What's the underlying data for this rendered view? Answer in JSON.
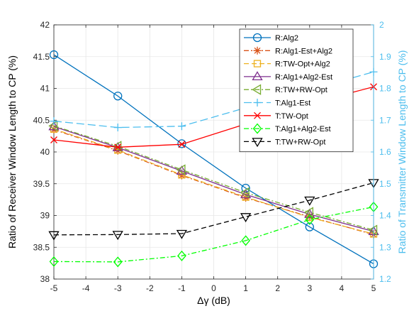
{
  "chart_data": {
    "type": "line",
    "xlabel": "Δγ (dB)",
    "ylabel_left": "Ratio of Receiver Window Length to CP (%)",
    "ylabel_right": "Ratio of Transmitter Window Length to CP (%)",
    "xlim": [
      -5,
      5
    ],
    "ylim_left": [
      38,
      42
    ],
    "ylim_right": [
      1.2,
      2
    ],
    "x_ticks": [
      "-5",
      "-4",
      "-3",
      "-2",
      "-1",
      "0",
      "1",
      "2",
      "3",
      "4",
      "5"
    ],
    "y_left_ticks": [
      "38",
      "38.5",
      "39",
      "39.5",
      "40",
      "40.5",
      "41",
      "41.5",
      "42"
    ],
    "y_right_ticks": [
      "1.2",
      "1.3",
      "1.4",
      "1.5",
      "1.6",
      "1.7",
      "1.8",
      "1.9",
      "2"
    ],
    "grid": true,
    "legend_position": "top-right",
    "x": [
      -5,
      -3,
      -1,
      1,
      3,
      5
    ],
    "series": [
      {
        "name": "R:Alg2",
        "axis": "left",
        "color": "#0072bd",
        "dash": "solid",
        "marker": "circle",
        "values": [
          41.53,
          40.88,
          40.13,
          39.43,
          38.82,
          38.24
        ]
      },
      {
        "name": "R:Alg1-Est+Alg2",
        "axis": "left",
        "color": "#d95319",
        "dash": "dashdot",
        "marker": "asterisk",
        "values": [
          40.35,
          40.02,
          39.63,
          39.28,
          38.98,
          38.7
        ]
      },
      {
        "name": "R:TW-Opt+Alg2",
        "axis": "left",
        "color": "#edb120",
        "dash": "dashed",
        "marker": "square",
        "values": [
          40.36,
          40.03,
          39.64,
          39.29,
          38.97,
          38.71
        ]
      },
      {
        "name": "R:Alg1+Alg2-Est",
        "axis": "left",
        "color": "#7e2f8e",
        "dash": "solid",
        "marker": "triangle-up",
        "values": [
          40.4,
          40.07,
          39.7,
          39.33,
          39.02,
          38.75
        ]
      },
      {
        "name": "R:TW+RW-Opt",
        "axis": "left",
        "color": "#77ac30",
        "dash": "dashdot",
        "marker": "triangle-left",
        "values": [
          40.41,
          40.09,
          39.72,
          39.36,
          39.05,
          38.77
        ]
      },
      {
        "name": "T:Alg1-Est",
        "axis": "right",
        "color": "#4dbeee",
        "dash": "longdash",
        "marker": "plus",
        "values": [
          1.697,
          1.677,
          1.681,
          1.739,
          1.795,
          1.852
        ]
      },
      {
        "name": "T:TW-Opt",
        "axis": "right",
        "color": "#ff0000",
        "dash": "solid",
        "marker": "x",
        "values": [
          1.638,
          1.615,
          1.624,
          1.688,
          1.752,
          1.805
        ]
      },
      {
        "name": "T:Alg1+Alg2-Est",
        "axis": "right",
        "color": "#00ff00",
        "dash": "dashdot",
        "marker": "diamond",
        "values": [
          1.255,
          1.254,
          1.273,
          1.321,
          1.387,
          1.427
        ]
      },
      {
        "name": "T:TW+RW-Opt",
        "axis": "right",
        "color": "#000000",
        "dash": "dashed",
        "marker": "triangle-down",
        "values": [
          1.339,
          1.34,
          1.343,
          1.396,
          1.448,
          1.503
        ]
      }
    ],
    "colors": {
      "left_axis": "#262626",
      "right_axis": "#4dbeee",
      "grid": "#e6e6e6"
    }
  }
}
